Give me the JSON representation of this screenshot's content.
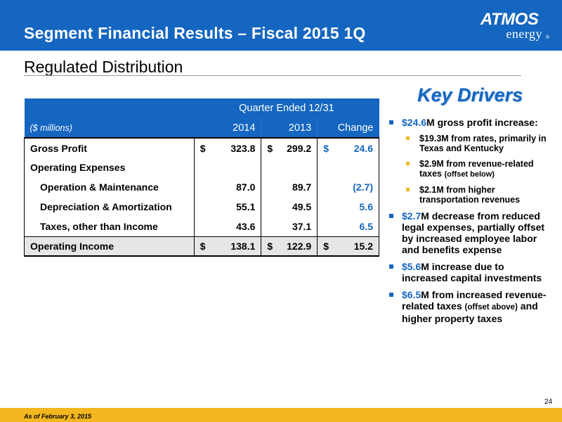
{
  "header": {
    "title": "Segment Financial Results – Fiscal 2015 1Q",
    "logo_top": "ATMOS",
    "logo_bottom": "energy",
    "logo_reg": "®",
    "color": "#1466c0"
  },
  "section": {
    "title": "Regulated Distribution"
  },
  "table": {
    "period_header": "Quarter Ended 12/31",
    "units": "($ millions)",
    "columns": [
      "2014",
      "2013",
      "Change"
    ],
    "currency": "$",
    "rows": [
      {
        "label": "Gross Profit",
        "v2014": "323.8",
        "v2013": "299.2",
        "change": "24.6",
        "dollar": true
      },
      {
        "label": "Operating Expenses",
        "v2014": "",
        "v2013": "",
        "change": "",
        "dollar": false
      },
      {
        "label": "Operation & Maintenance",
        "v2014": "87.0",
        "v2013": "89.7",
        "change": "(2.7)",
        "dollar": false
      },
      {
        "label": "Depreciation & Amortization",
        "v2014": "55.1",
        "v2013": "49.5",
        "change": "5.6",
        "dollar": false
      },
      {
        "label": "Taxes, other than Income",
        "v2014": "43.6",
        "v2013": "37.1",
        "change": "6.5",
        "dollar": false
      }
    ],
    "total": {
      "label": "Operating Income",
      "v2014": "138.1",
      "v2013": "122.9",
      "change": "15.2"
    }
  },
  "key_drivers": {
    "title": "Key Drivers",
    "items": [
      {
        "amount": "$24.6",
        "text": "M gross profit increase:"
      },
      {
        "amount": "$2.7",
        "text": "M decrease from reduced legal expenses, partially offset by increased employee labor and benefits expense"
      },
      {
        "amount": "$5.6",
        "text": "M increase due to increased capital investments"
      },
      {
        "amount": "$6.5",
        "text_a": "M from increased revenue-related taxes ",
        "text_small": "(offset above)",
        "text_b": " and higher property taxes"
      }
    ],
    "sub_items": [
      {
        "text": "$19.3M from rates, primarily in Texas and Kentucky"
      },
      {
        "text_a": "$2.9M from revenue-related taxes ",
        "text_small": "(offset below)"
      },
      {
        "text": "$2.1M from higher transportation revenues"
      }
    ],
    "accent": "#f3b81f"
  },
  "footer": {
    "note": "As of February 3, 2015",
    "page": "24"
  }
}
